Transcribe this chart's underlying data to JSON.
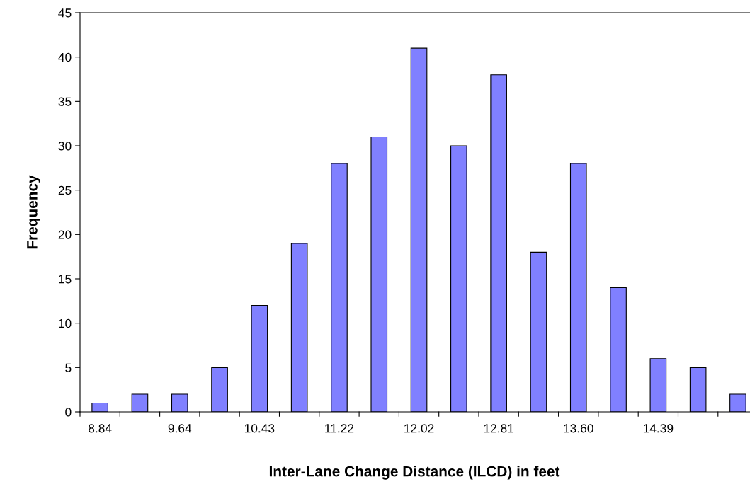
{
  "chart_data": {
    "type": "bar",
    "xlabel": "Inter-Lane Change Distance (ILCD) in feet",
    "ylabel": "Frequency",
    "categories": [
      "8.84",
      null,
      "9.64",
      null,
      "10.43",
      null,
      "11.22",
      null,
      "12.02",
      null,
      "12.81",
      null,
      "13.60",
      null,
      "14.39",
      null,
      null
    ],
    "values": [
      1,
      2,
      2,
      5,
      12,
      19,
      28,
      31,
      41,
      30,
      38,
      18,
      28,
      14,
      6,
      5,
      2
    ],
    "color": "#8080ff",
    "ylim": [
      0,
      45
    ],
    "yticks": [
      0,
      5,
      10,
      15,
      20,
      25,
      30,
      35,
      40,
      45
    ],
    "grid": false,
    "legend": false
  }
}
